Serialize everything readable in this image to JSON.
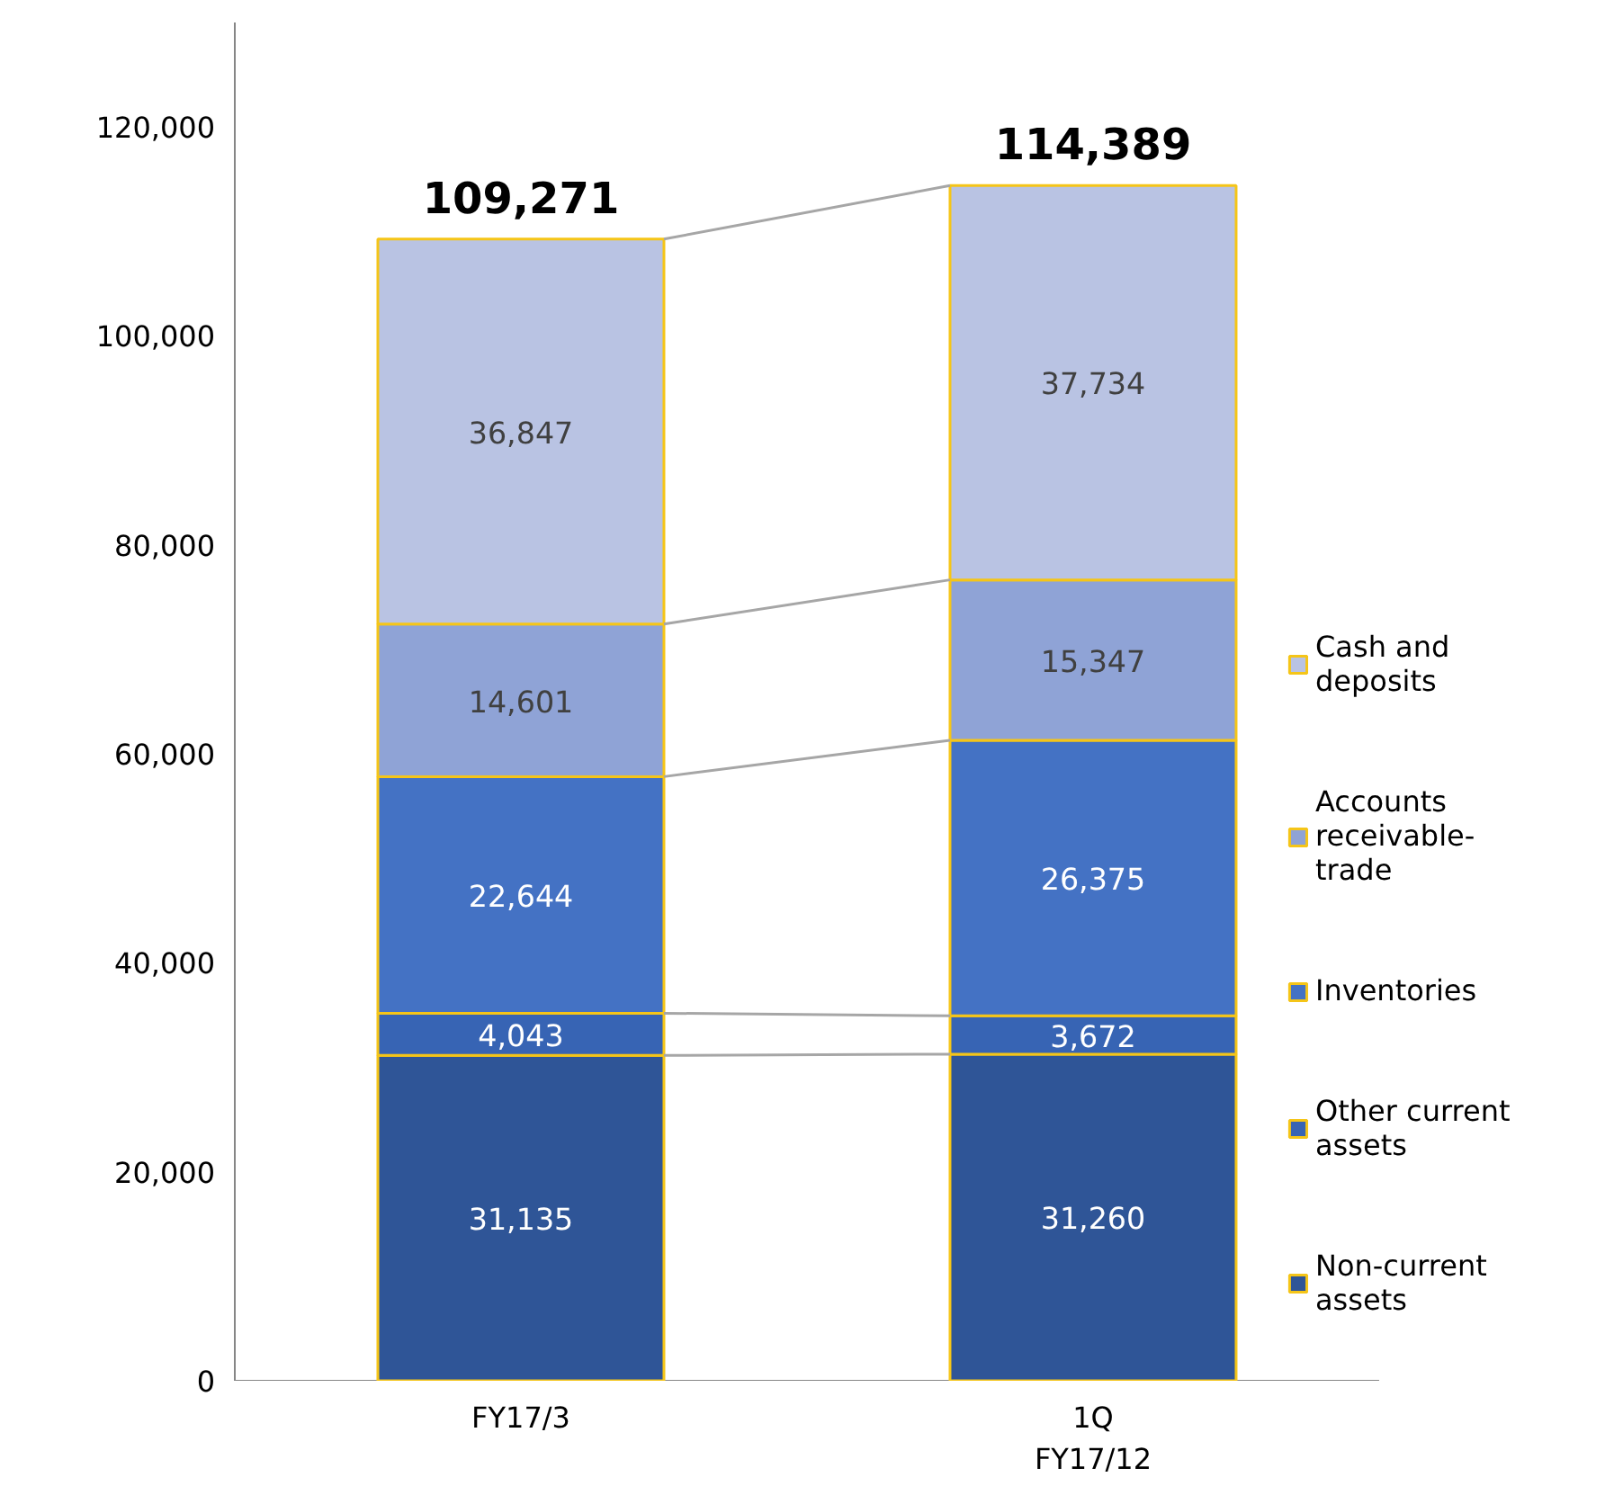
{
  "chart_data": {
    "type": "bar",
    "stacked": true,
    "categories": [
      "FY17/3",
      "1Q\nFY17/12"
    ],
    "series": [
      {
        "name": "Non-current assets",
        "color": "#2f5597",
        "values": [
          31135,
          31260
        ],
        "value_labels": [
          "31,135",
          "31,260"
        ]
      },
      {
        "name": "Other current assets",
        "color": "#3764b4",
        "values": [
          4043,
          3672
        ],
        "value_labels": [
          "4,043",
          "3,672"
        ]
      },
      {
        "name": "Inventories",
        "color": "#4472c4",
        "values": [
          22644,
          26375
        ],
        "value_labels": [
          "22,644",
          "26,375"
        ]
      },
      {
        "name": "Accounts receivable-trade",
        "color": "#8fa3d6",
        "values": [
          14601,
          15347
        ],
        "value_labels": [
          "14,601",
          "15,347"
        ]
      },
      {
        "name": "Cash and deposits",
        "color": "#b9c3e3",
        "values": [
          36847,
          37734
        ],
        "value_labels": [
          "36,847",
          "37,734"
        ]
      }
    ],
    "totals": [
      "109,271",
      "114,389"
    ],
    "ylim": [
      0,
      130000
    ],
    "yticks": [
      {
        "value": 0,
        "label": "0"
      },
      {
        "value": 20000,
        "label": "20,000"
      },
      {
        "value": 40000,
        "label": "40,000"
      },
      {
        "value": 60000,
        "label": "60,000"
      },
      {
        "value": 80000,
        "label": "80,000"
      },
      {
        "value": 100000,
        "label": "100,000"
      },
      {
        "value": 120000,
        "label": "120,000"
      }
    ],
    "grid": false,
    "legend": "right"
  }
}
